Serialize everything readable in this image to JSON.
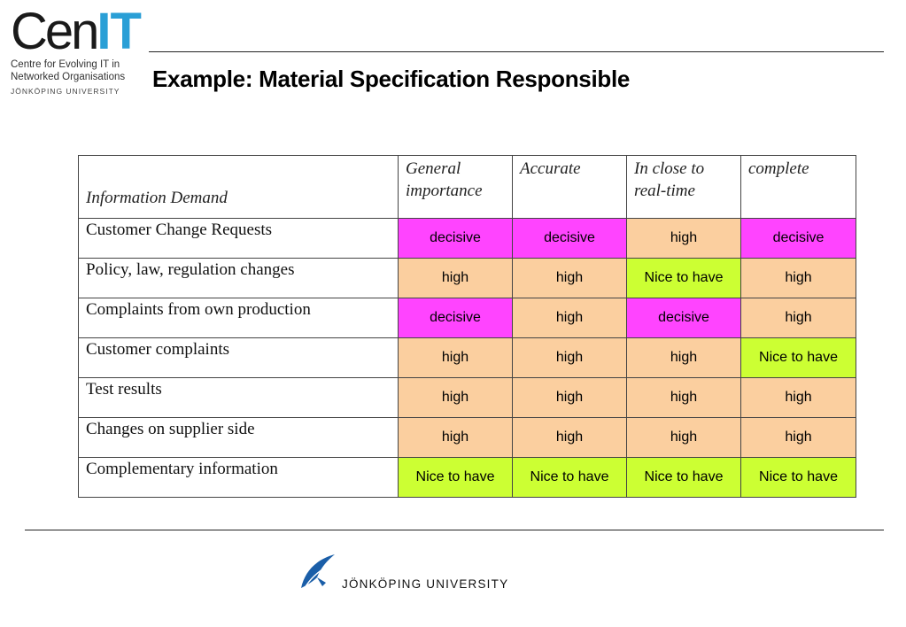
{
  "logo": {
    "mark_main": "Cen",
    "mark_accent": "IT",
    "sub_line1": "Centre for Evolving IT in",
    "sub_line2": "Networked Organisations",
    "university": "JÖNKÖPING UNIVERSITY"
  },
  "slide": {
    "title": "Example: Material Specification Responsible"
  },
  "colors": {
    "decisive": "#ff44ff",
    "high": "#fbcf9f",
    "nice": "#ccff33",
    "accent": "#2a9fd6",
    "footer_logo": "#1a5ea8"
  },
  "table": {
    "headers": [
      "Information Demand",
      "General importance",
      "Accurate",
      "In close to real-time",
      "complete"
    ],
    "rows": [
      {
        "label": "Customer Change Requests",
        "values": [
          "decisive",
          "decisive",
          "high",
          "decisive"
        ]
      },
      {
        "label": "Policy, law, regulation changes",
        "values": [
          "high",
          "high",
          "Nice to have",
          "high"
        ]
      },
      {
        "label": "Complaints from own production",
        "values": [
          "decisive",
          "high",
          "decisive",
          "high"
        ]
      },
      {
        "label": "Customer complaints",
        "values": [
          "high",
          "high",
          "high",
          "Nice to have"
        ]
      },
      {
        "label": "Test results",
        "values": [
          "high",
          "high",
          "high",
          "high"
        ]
      },
      {
        "label": "Changes on supplier side",
        "values": [
          "high",
          "high",
          "high",
          "high"
        ]
      },
      {
        "label": "Complementary information",
        "values": [
          "Nice to have",
          "Nice to have",
          "Nice to have",
          "Nice to have"
        ]
      }
    ]
  },
  "footer": {
    "university": "JÖNKÖPING UNIVERSITY",
    "icon": "jonkoping-university-emblem-icon"
  }
}
